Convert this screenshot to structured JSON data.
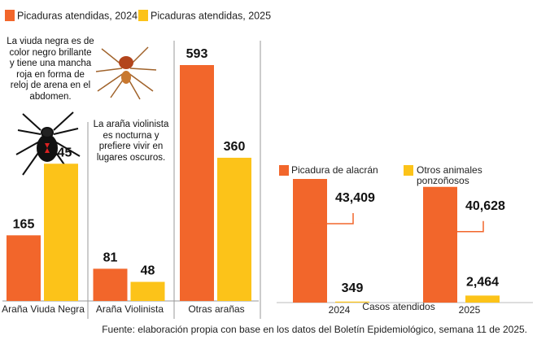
{
  "charts": [
    {
      "chart_data": {
        "type": "bar",
        "categories": [
          "Araña Viuda Negra",
          "Araña Violinista",
          "Otras arañas"
        ],
        "series": [
          {
            "name": "Picaduras atendidas, 2024",
            "color": "#f2662b",
            "values": [
              165,
              81,
              593
            ]
          },
          {
            "name": "Picaduras atendidas, 2025",
            "color": "#fcc319",
            "values": [
              345,
              48,
              360
            ]
          }
        ],
        "annotations": [
          "La viuda negra es de color negro brillante y tiene una mancha roja en forma de reloj de arena en el abdomen.",
          "La araña violinista es nocturna y prefiere vivir en lugares oscuros."
        ]
      }
    },
    {
      "chart_data": {
        "type": "bar",
        "x_label": "Casos atendidos",
        "categories": [
          "2024",
          "2025"
        ],
        "series": [
          {
            "name": "Picadura de alacrán",
            "color": "#f2662b",
            "values": [
              43409,
              40628
            ],
            "value_labels": [
              "43,409",
              "40,628"
            ]
          },
          {
            "name": "Otros animales ponzoñosos",
            "color": "#fcc319",
            "values": [
              349,
              2464
            ],
            "value_labels": [
              "349",
              "2,464"
            ]
          }
        ]
      }
    }
  ],
  "source": "Fuente: elaboración propia con base en los datos del Boletín Epidemiológico, semana 11 de 2025."
}
